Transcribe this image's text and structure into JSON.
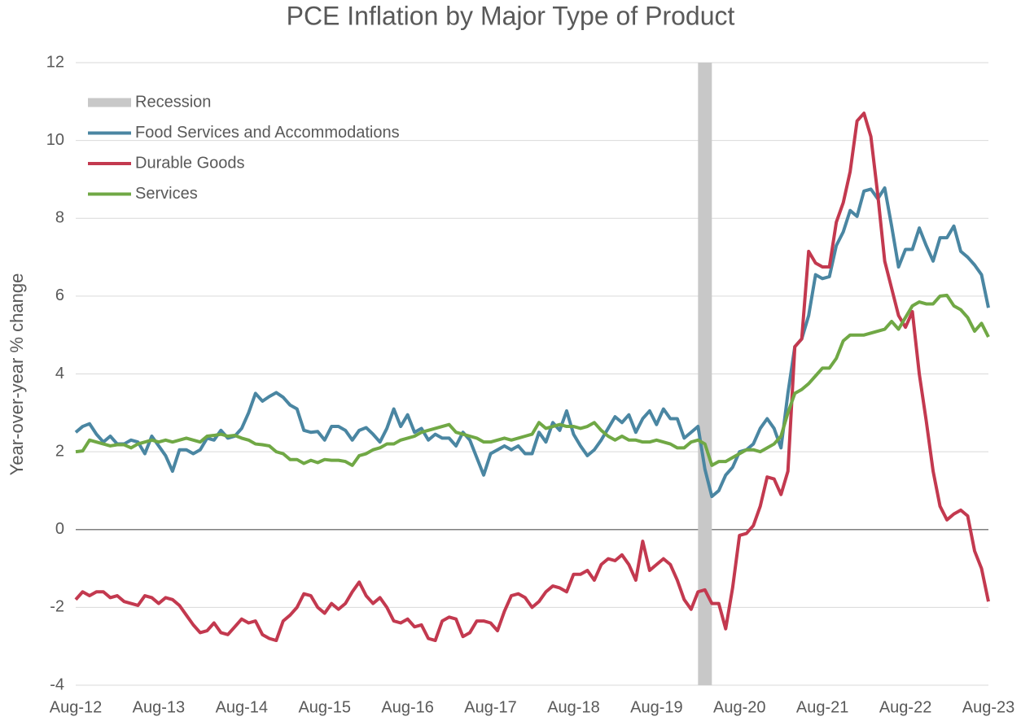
{
  "chart_data": {
    "type": "line",
    "title": "PCE Inflation by Major Type of Product",
    "y_label": "Year-over-year % change",
    "categories": [
      "Aug-12",
      null,
      null,
      null,
      null,
      null,
      null,
      null,
      null,
      null,
      null,
      null,
      "Aug-13",
      null,
      null,
      null,
      null,
      null,
      null,
      null,
      null,
      null,
      null,
      null,
      "Aug-14",
      null,
      null,
      null,
      null,
      null,
      null,
      null,
      null,
      null,
      null,
      null,
      "Aug-15",
      null,
      null,
      null,
      null,
      null,
      null,
      null,
      null,
      null,
      null,
      null,
      "Aug-16",
      null,
      null,
      null,
      null,
      null,
      null,
      null,
      null,
      null,
      null,
      null,
      "Aug-17",
      null,
      null,
      null,
      null,
      null,
      null,
      null,
      null,
      null,
      null,
      null,
      "Aug-18",
      null,
      null,
      null,
      null,
      null,
      null,
      null,
      null,
      null,
      null,
      null,
      "Aug-19",
      null,
      null,
      null,
      null,
      null,
      null,
      null,
      null,
      null,
      null,
      null,
      "Aug-20",
      null,
      null,
      null,
      null,
      null,
      null,
      null,
      null,
      null,
      null,
      null,
      "Aug-21",
      null,
      null,
      null,
      null,
      null,
      null,
      null,
      null,
      null,
      null,
      null,
      "Aug-22",
      null,
      null,
      null,
      null,
      null,
      null,
      null,
      null,
      null,
      null,
      null,
      "Aug-23"
    ],
    "recession": {
      "name": "Recession",
      "color": "#c8c8c8",
      "range": [
        90,
        92
      ]
    },
    "series": [
      {
        "name": "Food Services and Accommodations",
        "color": "#4a86a2",
        "values": [
          2.5,
          2.65,
          2.72,
          2.45,
          2.25,
          2.4,
          2.2,
          2.2,
          2.3,
          2.25,
          1.95,
          2.4,
          2.15,
          1.9,
          1.5,
          2.05,
          2.05,
          1.95,
          2.05,
          2.35,
          2.3,
          2.55,
          2.35,
          2.4,
          2.6,
          3.0,
          3.5,
          3.3,
          3.42,
          3.52,
          3.4,
          3.2,
          3.1,
          2.55,
          2.5,
          2.52,
          2.3,
          2.65,
          2.65,
          2.55,
          2.3,
          2.55,
          2.62,
          2.45,
          2.25,
          2.6,
          3.1,
          2.65,
          2.95,
          2.5,
          2.6,
          2.3,
          2.45,
          2.35,
          2.35,
          2.15,
          2.5,
          2.3,
          1.85,
          1.4,
          1.95,
          2.05,
          2.15,
          2.05,
          2.15,
          1.95,
          1.95,
          2.5,
          2.25,
          2.75,
          2.55,
          3.05,
          2.45,
          2.15,
          1.9,
          2.05,
          2.3,
          2.6,
          2.9,
          2.75,
          2.95,
          2.5,
          2.85,
          3.05,
          2.7,
          3.1,
          2.85,
          2.85,
          2.35,
          2.5,
          2.65,
          1.55,
          0.85,
          1.0,
          1.4,
          1.6,
          2.0,
          2.05,
          2.2,
          2.6,
          2.85,
          2.6,
          2.1,
          3.5,
          4.7,
          4.9,
          5.5,
          6.55,
          6.45,
          6.5,
          7.3,
          7.65,
          8.2,
          8.05,
          8.7,
          8.75,
          8.5,
          8.78,
          7.8,
          6.75,
          7.2,
          7.2,
          7.75,
          7.3,
          6.9,
          7.5,
          7.5,
          7.8,
          7.15,
          7.0,
          6.8,
          6.55,
          5.7
        ]
      },
      {
        "name": "Durable Goods",
        "color": "#c3394f",
        "values": [
          -1.8,
          -1.6,
          -1.7,
          -1.6,
          -1.6,
          -1.75,
          -1.7,
          -1.85,
          -1.9,
          -1.95,
          -1.7,
          -1.75,
          -1.9,
          -1.75,
          -1.8,
          -1.95,
          -2.2,
          -2.45,
          -2.65,
          -2.6,
          -2.4,
          -2.65,
          -2.7,
          -2.5,
          -2.3,
          -2.4,
          -2.35,
          -2.7,
          -2.8,
          -2.85,
          -2.35,
          -2.2,
          -2.0,
          -1.65,
          -1.7,
          -2.0,
          -2.15,
          -1.9,
          -2.05,
          -1.9,
          -1.6,
          -1.35,
          -1.7,
          -1.9,
          -1.75,
          -2.0,
          -2.35,
          -2.4,
          -2.3,
          -2.5,
          -2.45,
          -2.8,
          -2.85,
          -2.35,
          -2.25,
          -2.3,
          -2.75,
          -2.65,
          -2.35,
          -2.35,
          -2.4,
          -2.6,
          -2.1,
          -1.7,
          -1.65,
          -1.75,
          -2.0,
          -1.85,
          -1.6,
          -1.45,
          -1.5,
          -1.6,
          -1.15,
          -1.15,
          -1.05,
          -1.3,
          -0.9,
          -0.75,
          -0.8,
          -0.65,
          -0.9,
          -1.3,
          -0.3,
          -1.05,
          -0.9,
          -0.75,
          -0.9,
          -1.3,
          -1.8,
          -2.05,
          -1.6,
          -1.55,
          -1.9,
          -1.9,
          -2.55,
          -1.5,
          -0.15,
          -0.1,
          0.1,
          0.6,
          1.35,
          1.3,
          0.9,
          1.5,
          4.7,
          4.9,
          7.15,
          6.85,
          6.75,
          6.75,
          7.9,
          8.4,
          9.2,
          10.5,
          10.7,
          10.1,
          8.6,
          6.9,
          6.2,
          5.5,
          5.2,
          5.6,
          4.0,
          2.8,
          1.5,
          0.6,
          0.25,
          0.4,
          0.5,
          0.35,
          -0.55,
          -1.0,
          -1.85
        ]
      },
      {
        "name": "Services",
        "color": "#70a845",
        "values": [
          2.0,
          2.02,
          2.3,
          2.25,
          2.2,
          2.15,
          2.18,
          2.18,
          2.1,
          2.2,
          2.25,
          2.3,
          2.25,
          2.3,
          2.25,
          2.3,
          2.35,
          2.3,
          2.25,
          2.4,
          2.42,
          2.45,
          2.4,
          2.42,
          2.35,
          2.3,
          2.2,
          2.18,
          2.15,
          2.0,
          1.95,
          1.8,
          1.8,
          1.7,
          1.78,
          1.72,
          1.8,
          1.78,
          1.78,
          1.75,
          1.65,
          1.9,
          1.95,
          2.05,
          2.1,
          2.2,
          2.2,
          2.3,
          2.35,
          2.4,
          2.5,
          2.55,
          2.6,
          2.65,
          2.7,
          2.5,
          2.45,
          2.4,
          2.35,
          2.25,
          2.25,
          2.3,
          2.35,
          2.3,
          2.35,
          2.4,
          2.45,
          2.75,
          2.6,
          2.65,
          2.7,
          2.65,
          2.65,
          2.6,
          2.65,
          2.75,
          2.55,
          2.4,
          2.3,
          2.4,
          2.3,
          2.3,
          2.25,
          2.25,
          2.3,
          2.25,
          2.2,
          2.1,
          2.1,
          2.25,
          2.3,
          2.2,
          1.65,
          1.75,
          1.75,
          1.85,
          1.95,
          2.05,
          2.05,
          2.0,
          2.1,
          2.2,
          2.4,
          3.0,
          3.5,
          3.6,
          3.75,
          3.95,
          4.15,
          4.15,
          4.4,
          4.85,
          5.0,
          5.0,
          5.0,
          5.05,
          5.1,
          5.15,
          5.35,
          5.15,
          5.45,
          5.75,
          5.85,
          5.8,
          5.8,
          6.0,
          6.02,
          5.75,
          5.65,
          5.45,
          5.1,
          5.3,
          4.95
        ]
      }
    ],
    "ylim": [
      -4,
      12
    ],
    "yticks": [
      -4,
      -2,
      0,
      2,
      4,
      6,
      8,
      10,
      12
    ],
    "grid": true,
    "legend": "top-left"
  }
}
